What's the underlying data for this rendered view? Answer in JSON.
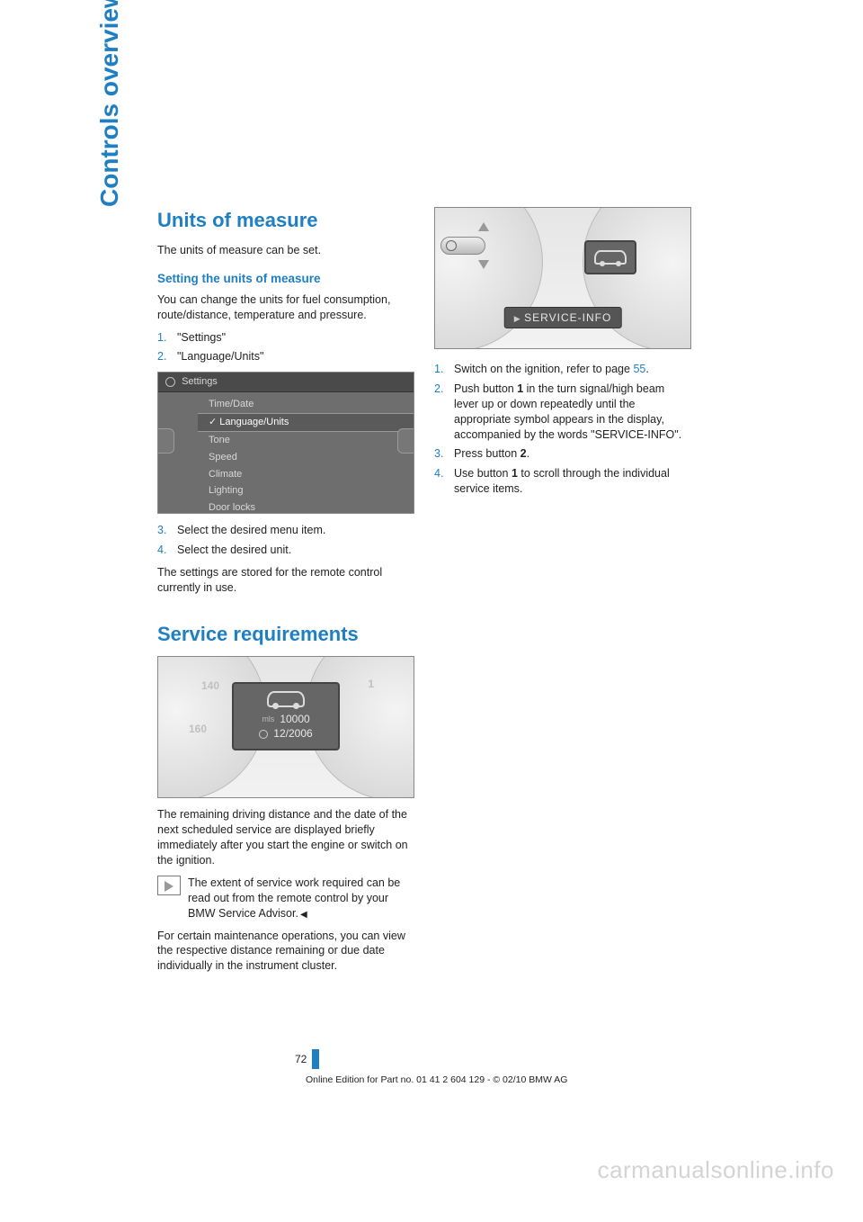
{
  "side_tab": "Controls overview",
  "page_number": "72",
  "footer": "Online Edition for Part no. 01 41 2 604 129 - © 02/10 BMW AG",
  "watermark": "carmanualsonline.info",
  "left": {
    "h1_units": "Units of measure",
    "units_intro": "The units of measure can be set.",
    "h2_setting": "Setting the units of measure",
    "setting_p": "You can change the units for fuel consumption, route/distance, temperature and pressure.",
    "step1": "\"Settings\"",
    "step2": "\"Language/Units\"",
    "step3": "Select the desired menu item.",
    "step4": "Select the desired unit.",
    "stored_p": "The settings are stored for the remote control currently in use.",
    "h1_service": "Service requirements",
    "svc_p1": "The remaining driving distance and the date of the next scheduled service are displayed briefly immediately after you start the engine or switch on the ignition.",
    "note": "The extent of service work required can be read out from the remote control by your BMW Service Advisor.",
    "svc_p2": "For certain maintenance operations, you can view the respective distance remaining or due date individually in the instrument cluster."
  },
  "right": {
    "step1a": "Switch on the ignition, refer to page ",
    "step1_link": "55",
    "step1b": ".",
    "step2": "Push button 1 in the turn signal/high beam lever up or down repeatedly until the appropriate symbol appears in the display, accompanied by the words \"SERVICE-INFO\".",
    "step3": "Press button 2.",
    "step4": "Use button 1 to scroll through the individual service items."
  },
  "fig_settings": {
    "title": "Settings",
    "items": [
      "Time/Date",
      "Language/Units",
      "Tone",
      "Speed",
      "Climate",
      "Lighting",
      "Door locks"
    ],
    "selected_index": 1
  },
  "fig_cluster1": {
    "mls_label": "mls",
    "mls_value": "10000",
    "date_value": "12/2006",
    "tick_140": "140",
    "tick_160": "160",
    "tick_1": "1"
  },
  "fig_cluster2": {
    "label": "SERVICE-INFO"
  }
}
